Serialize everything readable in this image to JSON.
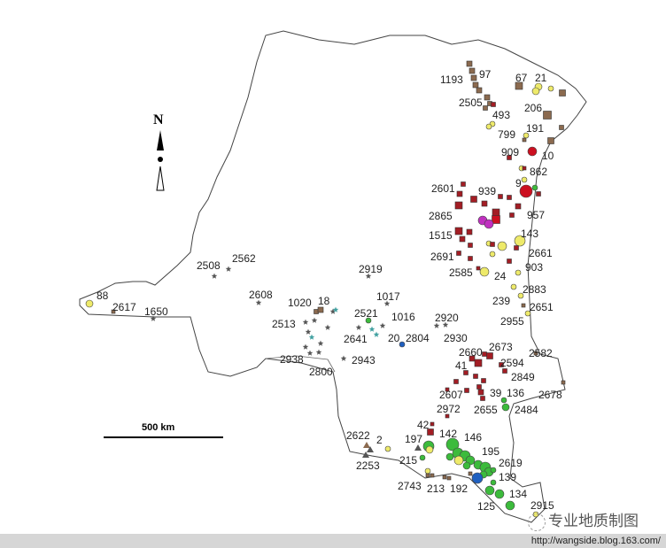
{
  "map": {
    "north_label": "N",
    "scale_label": "500 km",
    "colors": {
      "brown_square": "#8b6a4f",
      "dark_red_square": "#a31d24",
      "red_circle": "#cc1020",
      "yellow_circle": "#eeea6a",
      "green_circle": "#3cbb3c",
      "gray_star": "#555555",
      "magenta_circle": "#c030c0",
      "blue_circle": "#2060c0",
      "teal_star": "#40a0a0"
    },
    "labels": [
      "1193",
      "97",
      "67",
      "21",
      "2505",
      "493",
      "206",
      "799",
      "191",
      "909",
      "10",
      "862",
      "9",
      "2601",
      "939",
      "2865",
      "957",
      "1515",
      "143",
      "2691",
      "2661",
      "903",
      "2585",
      "24",
      "2883",
      "239",
      "2651",
      "2955",
      "2920",
      "2930",
      "2919",
      "2508",
      "2562",
      "2608",
      "1017",
      "1020",
      "18",
      "2521",
      "1016",
      "2513",
      "2641",
      "20",
      "2804",
      "2938",
      "2943",
      "2800",
      "88",
      "2617",
      "1650",
      "2660",
      "2673",
      "2582",
      "41",
      "2594",
      "2849",
      "2607",
      "39",
      "136",
      "2678",
      "2972",
      "2655",
      "2484",
      "42",
      "142",
      "146",
      "2622",
      "2",
      "197",
      "195",
      "215",
      "2619",
      "2253",
      "139",
      "2743",
      "213",
      "192",
      "134",
      "125",
      "2915"
    ]
  },
  "watermark": "专业地质制图",
  "footer": {
    "url": "http://wangside.blog.163.com/"
  }
}
